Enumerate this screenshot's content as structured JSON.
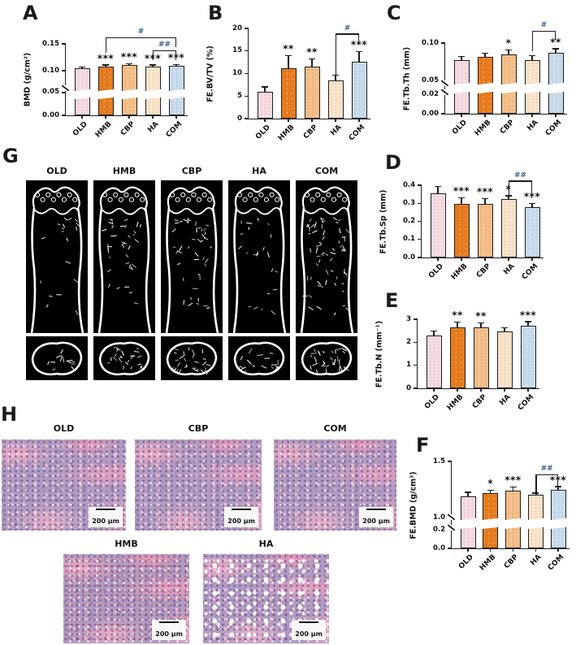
{
  "figure": {
    "background": "#ffffff"
  },
  "palette": {
    "bar_colors": [
      "#F8DAE1",
      "#E87C1E",
      "#F6BE88",
      "#FBE4C9",
      "#C9DCED"
    ],
    "bar_border": "#1c1c1c",
    "hash_color": "#3A608C",
    "star_color": "#111111",
    "axis_color": "#1c1c1c",
    "microct_bg": "#000000",
    "microct_bone": "#ffffff",
    "histology_base": "#b09ac2",
    "histology_pink": "#f0a8be"
  },
  "panels": {
    "A": {
      "label": "A"
    },
    "B": {
      "label": "B"
    },
    "C": {
      "label": "C"
    },
    "D": {
      "label": "D"
    },
    "E": {
      "label": "E"
    },
    "F": {
      "label": "F"
    },
    "G": {
      "label": "G"
    },
    "H": {
      "label": "H"
    }
  },
  "groups": [
    "OLD",
    "HMB",
    "CBP",
    "HA",
    "COM"
  ],
  "chart_data": [
    {
      "panel": "A",
      "type": "bar",
      "title": "",
      "xlabel": "",
      "ylabel": "BMD (g/cm²)",
      "categories": [
        "OLD",
        "HMB",
        "CBP",
        "HA",
        "COM"
      ],
      "values": [
        0.104,
        0.108,
        0.11,
        0.108,
        0.109
      ],
      "errors": [
        0.002,
        0.0015,
        0.0015,
        0.0015,
        0.0015
      ],
      "sig": [
        "",
        "***",
        "***",
        "***",
        "***"
      ],
      "ylim": [
        0,
        0.15
      ],
      "grid": false,
      "axis_break": true,
      "ticks": [
        {
          "v": 0.0,
          "label": "0.00",
          "f": 0
        },
        {
          "v": 0.05,
          "label": "0.05",
          "f": 0.32
        },
        {
          "v": 0.1,
          "label": "0.10",
          "f": 0.625
        },
        {
          "v": 0.15,
          "label": "0.15",
          "f": 1
        }
      ],
      "axis_breaks_f": [
        0.38
      ],
      "bar_gap_f": [
        0.24,
        0.35
      ],
      "brackets": [
        {
          "from": 1,
          "to": 4,
          "label": "#",
          "y_f": 1.08,
          "drop_l_f": 0.88,
          "drop_r_f": 0.96
        },
        {
          "from": 3,
          "to": 4,
          "label": "##",
          "y_f": 0.9,
          "drop_l_f": 0.77,
          "drop_r_f": 0.77
        }
      ]
    },
    {
      "panel": "B",
      "type": "bar",
      "title": "",
      "xlabel": "",
      "ylabel": "FE.BV/TV (%)",
      "categories": [
        "OLD",
        "HMB",
        "CBP",
        "HA",
        "COM"
      ],
      "values": [
        6.0,
        11.1,
        11.6,
        8.5,
        12.6
      ],
      "errors": [
        0.9,
        2.7,
        1.5,
        1.0,
        2.1
      ],
      "sig": [
        "",
        "**",
        "**",
        "",
        "***"
      ],
      "ylim": [
        0,
        20
      ],
      "grid": false,
      "axis_break": false,
      "ticks": [
        {
          "v": 0,
          "label": "0",
          "f": 0
        },
        {
          "v": 5,
          "label": "5",
          "f": 0.25
        },
        {
          "v": 10,
          "label": "10",
          "f": 0.5
        },
        {
          "v": 15,
          "label": "15",
          "f": 0.75
        },
        {
          "v": 20,
          "label": "20",
          "f": 1
        }
      ],
      "axis_breaks_f": [],
      "bar_gap_f": null,
      "brackets": [
        {
          "from": 3,
          "to": 4,
          "label": "#",
          "y_f": 0.93,
          "drop_l_f": 0.47,
          "drop_r_f": 0.82
        }
      ]
    },
    {
      "panel": "C",
      "type": "bar",
      "title": "",
      "xlabel": "",
      "ylabel": "FE.Tb.Th (mm)",
      "categories": [
        "OLD",
        "HMB",
        "CBP",
        "HA",
        "COM"
      ],
      "values": [
        0.078,
        0.082,
        0.085,
        0.078,
        0.087
      ],
      "errors": [
        0.004,
        0.004,
        0.005,
        0.005,
        0.005
      ],
      "sig": [
        "",
        "",
        "*",
        "",
        "**"
      ],
      "ylim": [
        0,
        0.1
      ],
      "grid": false,
      "axis_break": true,
      "ticks": [
        {
          "v": 0.0,
          "label": "0.00",
          "f": 0
        },
        {
          "v": 0.02,
          "label": "0.02",
          "f": 0.27
        },
        {
          "v": 0.05,
          "label": "0.05",
          "f": 0.46
        },
        {
          "v": 0.1,
          "label": "0.10",
          "f": 1
        }
      ],
      "axis_breaks_f": [
        0.31,
        0.43
      ],
      "bar_gap_f": [
        0.3,
        0.43
      ],
      "brackets": [
        {
          "from": 3,
          "to": 4,
          "label": "#",
          "y_f": 1.16,
          "drop_l_f": 0.88,
          "drop_r_f": 1.05
        }
      ]
    },
    {
      "panel": "D",
      "type": "bar",
      "title": "",
      "xlabel": "",
      "ylabel": "FE.Tb.Sp (mm)",
      "categories": [
        "OLD",
        "HMB",
        "CBP",
        "HA",
        "COM"
      ],
      "values": [
        0.355,
        0.297,
        0.295,
        0.322,
        0.279
      ],
      "errors": [
        0.035,
        0.03,
        0.027,
        0.017,
        0.017
      ],
      "sig": [
        "",
        "***",
        "***",
        "*",
        "***"
      ],
      "ylim": [
        0,
        0.4
      ],
      "grid": false,
      "axis_break": false,
      "ticks": [
        {
          "v": 0.0,
          "label": "0.0",
          "f": 0
        },
        {
          "v": 0.1,
          "label": "0.1",
          "f": 0.25
        },
        {
          "v": 0.2,
          "label": "0.2",
          "f": 0.5
        },
        {
          "v": 0.3,
          "label": "0.3",
          "f": 0.75
        },
        {
          "v": 0.4,
          "label": "0.4",
          "f": 1
        }
      ],
      "axis_breaks_f": [],
      "bar_gap_f": null,
      "brackets": [
        {
          "from": 3,
          "to": 4,
          "label": "##",
          "y_f": 1.05,
          "drop_l_f": 0.87,
          "drop_r_f": 0.82
        }
      ]
    },
    {
      "panel": "E",
      "type": "bar",
      "title": "",
      "xlabel": "",
      "ylabel": "FE.Tb.N (mm⁻¹)",
      "categories": [
        "OLD",
        "HMB",
        "CBP",
        "HA",
        "COM"
      ],
      "values": [
        2.3,
        2.63,
        2.63,
        2.48,
        2.72
      ],
      "errors": [
        0.17,
        0.22,
        0.2,
        0.12,
        0.15
      ],
      "sig": [
        "",
        "**",
        "**",
        "",
        "***"
      ],
      "ylim": [
        0,
        3
      ],
      "grid": false,
      "axis_break": false,
      "ticks": [
        {
          "v": 0,
          "label": "0",
          "f": 0
        },
        {
          "v": 1,
          "label": "1",
          "f": 0.3333
        },
        {
          "v": 2,
          "label": "2",
          "f": 0.6667
        },
        {
          "v": 3,
          "label": "3",
          "f": 1
        }
      ],
      "axis_breaks_f": [],
      "bar_gap_f": null,
      "brackets": []
    },
    {
      "panel": "F",
      "type": "bar",
      "title": "",
      "xlabel": "",
      "ylabel": "FE.BMD (g/cm³)",
      "categories": [
        "OLD",
        "HMB",
        "CBP",
        "HA",
        "COM"
      ],
      "values": [
        1.19,
        1.22,
        1.24,
        1.2,
        1.245
      ],
      "errors": [
        0.03,
        0.02,
        0.025,
        0.012,
        0.025
      ],
      "sig": [
        "",
        "*",
        "***",
        "",
        "***"
      ],
      "ylim": [
        0,
        1.5
      ],
      "grid": false,
      "axis_break": true,
      "ticks": [
        {
          "v": 0.0,
          "label": "0.0",
          "f": 0
        },
        {
          "v": 0.2,
          "label": "0.2",
          "f": 0.215
        },
        {
          "v": 1.0,
          "label": "1.0",
          "f": 0.355
        },
        {
          "v": 1.5,
          "label": "1.5",
          "f": 1
        }
      ],
      "axis_breaks_f": [
        0.24,
        0.36
      ],
      "bar_gap_f": [
        0.235,
        0.335
      ],
      "brackets": [
        {
          "from": 3,
          "to": 4,
          "label": "##",
          "y_f": 0.84,
          "drop_l_f": 0.61,
          "drop_r_f": 0.72
        }
      ]
    }
  ],
  "panel_g": {
    "columns": [
      "OLD",
      "HMB",
      "CBP",
      "HA",
      "COM"
    ],
    "rows": [
      "longitudinal-section",
      "cross-section"
    ]
  },
  "panel_h": {
    "rows": [
      {
        "tiles": [
          "OLD",
          "CBP",
          "COM"
        ]
      },
      {
        "tiles": [
          "HMB",
          "HA"
        ]
      }
    ],
    "scale_bar_label": "200 μm"
  }
}
